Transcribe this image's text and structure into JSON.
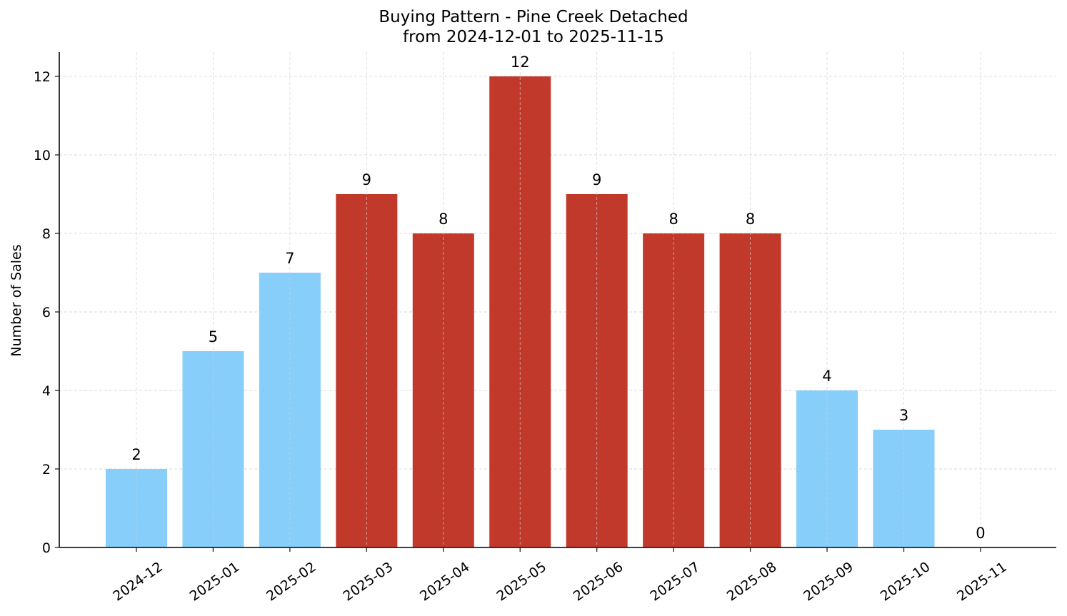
{
  "chart_data": {
    "type": "bar",
    "title": "Buying Pattern - Pine Creek Detached",
    "subtitle": "from 2024-12-01 to 2025-11-15",
    "xlabel": "",
    "ylabel": "Number of Sales",
    "categories": [
      "2024-12",
      "2025-01",
      "2025-02",
      "2025-03",
      "2025-04",
      "2025-05",
      "2025-06",
      "2025-07",
      "2025-08",
      "2025-09",
      "2025-10",
      "2025-11"
    ],
    "values": [
      2,
      5,
      7,
      9,
      8,
      12,
      9,
      8,
      8,
      4,
      3,
      0
    ],
    "bar_colors": [
      "#87CEFA",
      "#87CEFA",
      "#87CEFA",
      "#C0392B",
      "#C0392B",
      "#C0392B",
      "#C0392B",
      "#C0392B",
      "#C0392B",
      "#87CEFA",
      "#87CEFA",
      "#87CEFA"
    ],
    "highlight_color": "#C0392B",
    "base_color": "#87CEFA",
    "data_labels": [
      "2",
      "5",
      "7",
      "9",
      "8",
      "12",
      "9",
      "8",
      "8",
      "4",
      "3",
      "0"
    ],
    "yticks": [
      0,
      2,
      4,
      6,
      8,
      10,
      12
    ],
    "ylim": [
      0,
      12.6
    ],
    "grid": true,
    "legend": null
  }
}
